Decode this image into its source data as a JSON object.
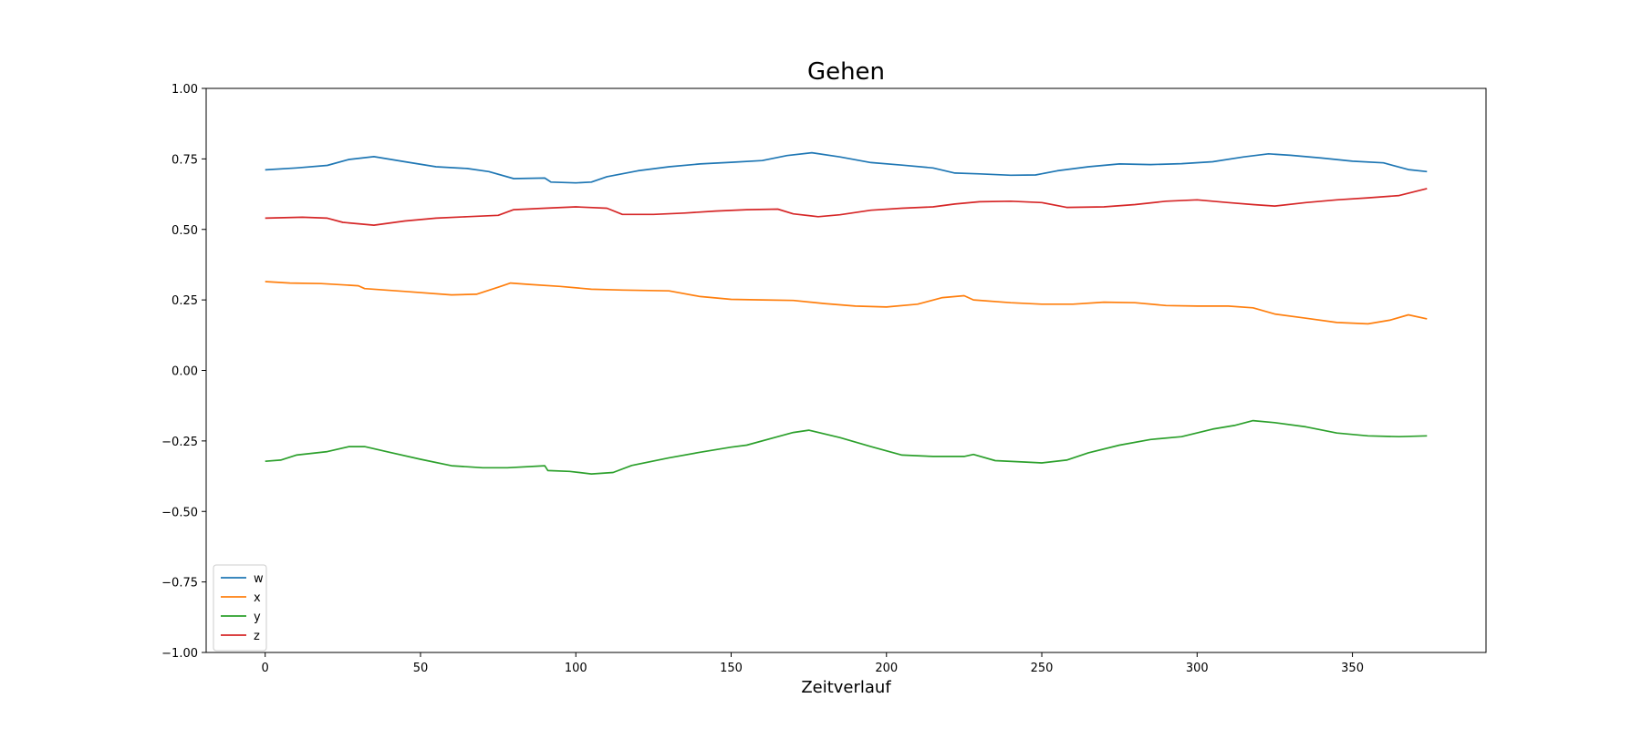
{
  "chart_data": {
    "type": "line",
    "title": "Gehen",
    "xlabel": "Zeitverlauf",
    "ylabel": "",
    "xlim": [
      -19,
      393
    ],
    "ylim": [
      -1.0,
      1.0
    ],
    "x_ticks": [
      0,
      50,
      100,
      150,
      200,
      250,
      300,
      350
    ],
    "y_ticks": [
      -1.0,
      -0.75,
      -0.5,
      -0.25,
      0.0,
      0.25,
      0.5,
      0.75,
      1.0
    ],
    "y_tick_labels": [
      "−1.00",
      "−0.75",
      "−0.50",
      "−0.25",
      "0.00",
      "0.25",
      "0.50",
      "0.75",
      "1.00"
    ],
    "grid": false,
    "legend_position": "lower-left",
    "series": [
      {
        "name": "w",
        "color": "#1f77b4",
        "points": [
          [
            0,
            0.711
          ],
          [
            10,
            0.718
          ],
          [
            20,
            0.727
          ],
          [
            27,
            0.748
          ],
          [
            35,
            0.758
          ],
          [
            45,
            0.74
          ],
          [
            55,
            0.722
          ],
          [
            65,
            0.716
          ],
          [
            72,
            0.705
          ],
          [
            80,
            0.68
          ],
          [
            90,
            0.682
          ],
          [
            92,
            0.668
          ],
          [
            100,
            0.665
          ],
          [
            105,
            0.668
          ],
          [
            110,
            0.687
          ],
          [
            120,
            0.708
          ],
          [
            130,
            0.722
          ],
          [
            140,
            0.732
          ],
          [
            150,
            0.738
          ],
          [
            160,
            0.744
          ],
          [
            168,
            0.762
          ],
          [
            176,
            0.772
          ],
          [
            185,
            0.757
          ],
          [
            195,
            0.737
          ],
          [
            205,
            0.728
          ],
          [
            215,
            0.718
          ],
          [
            222,
            0.7
          ],
          [
            230,
            0.697
          ],
          [
            240,
            0.692
          ],
          [
            248,
            0.693
          ],
          [
            255,
            0.708
          ],
          [
            265,
            0.722
          ],
          [
            275,
            0.732
          ],
          [
            285,
            0.73
          ],
          [
            295,
            0.733
          ],
          [
            305,
            0.74
          ],
          [
            315,
            0.757
          ],
          [
            323,
            0.768
          ],
          [
            330,
            0.763
          ],
          [
            340,
            0.753
          ],
          [
            350,
            0.742
          ],
          [
            360,
            0.736
          ],
          [
            368,
            0.712
          ],
          [
            374,
            0.705
          ]
        ]
      },
      {
        "name": "x",
        "color": "#ff7f0e",
        "points": [
          [
            0,
            0.315
          ],
          [
            8,
            0.31
          ],
          [
            18,
            0.308
          ],
          [
            30,
            0.3
          ],
          [
            32,
            0.29
          ],
          [
            45,
            0.28
          ],
          [
            60,
            0.268
          ],
          [
            68,
            0.27
          ],
          [
            75,
            0.295
          ],
          [
            79,
            0.31
          ],
          [
            85,
            0.305
          ],
          [
            95,
            0.298
          ],
          [
            105,
            0.288
          ],
          [
            115,
            0.285
          ],
          [
            130,
            0.282
          ],
          [
            140,
            0.262
          ],
          [
            150,
            0.252
          ],
          [
            160,
            0.25
          ],
          [
            170,
            0.248
          ],
          [
            180,
            0.237
          ],
          [
            190,
            0.228
          ],
          [
            200,
            0.225
          ],
          [
            210,
            0.235
          ],
          [
            218,
            0.258
          ],
          [
            225,
            0.265
          ],
          [
            228,
            0.25
          ],
          [
            240,
            0.24
          ],
          [
            250,
            0.235
          ],
          [
            260,
            0.235
          ],
          [
            270,
            0.242
          ],
          [
            280,
            0.24
          ],
          [
            290,
            0.23
          ],
          [
            300,
            0.228
          ],
          [
            310,
            0.228
          ],
          [
            318,
            0.222
          ],
          [
            325,
            0.2
          ],
          [
            335,
            0.185
          ],
          [
            345,
            0.17
          ],
          [
            355,
            0.165
          ],
          [
            362,
            0.178
          ],
          [
            368,
            0.197
          ],
          [
            374,
            0.183
          ]
        ]
      },
      {
        "name": "y",
        "color": "#2ca02c",
        "points": [
          [
            0,
            -0.322
          ],
          [
            5,
            -0.318
          ],
          [
            10,
            -0.3
          ],
          [
            20,
            -0.288
          ],
          [
            27,
            -0.27
          ],
          [
            32,
            -0.27
          ],
          [
            40,
            -0.29
          ],
          [
            50,
            -0.315
          ],
          [
            60,
            -0.338
          ],
          [
            70,
            -0.345
          ],
          [
            78,
            -0.345
          ],
          [
            90,
            -0.338
          ],
          [
            91,
            -0.355
          ],
          [
            98,
            -0.358
          ],
          [
            105,
            -0.367
          ],
          [
            112,
            -0.362
          ],
          [
            118,
            -0.337
          ],
          [
            130,
            -0.31
          ],
          [
            140,
            -0.29
          ],
          [
            150,
            -0.272
          ],
          [
            155,
            -0.265
          ],
          [
            165,
            -0.235
          ],
          [
            170,
            -0.22
          ],
          [
            175,
            -0.212
          ],
          [
            185,
            -0.238
          ],
          [
            195,
            -0.27
          ],
          [
            205,
            -0.3
          ],
          [
            215,
            -0.305
          ],
          [
            225,
            -0.305
          ],
          [
            228,
            -0.298
          ],
          [
            235,
            -0.32
          ],
          [
            245,
            -0.325
          ],
          [
            250,
            -0.328
          ],
          [
            258,
            -0.318
          ],
          [
            265,
            -0.292
          ],
          [
            275,
            -0.265
          ],
          [
            285,
            -0.245
          ],
          [
            295,
            -0.235
          ],
          [
            305,
            -0.208
          ],
          [
            312,
            -0.195
          ],
          [
            318,
            -0.178
          ],
          [
            325,
            -0.185
          ],
          [
            335,
            -0.2
          ],
          [
            345,
            -0.222
          ],
          [
            355,
            -0.232
          ],
          [
            365,
            -0.235
          ],
          [
            374,
            -0.232
          ]
        ]
      },
      {
        "name": "z",
        "color": "#d62728",
        "points": [
          [
            0,
            0.54
          ],
          [
            12,
            0.543
          ],
          [
            20,
            0.54
          ],
          [
            25,
            0.525
          ],
          [
            35,
            0.515
          ],
          [
            45,
            0.53
          ],
          [
            55,
            0.54
          ],
          [
            65,
            0.545
          ],
          [
            75,
            0.55
          ],
          [
            80,
            0.57
          ],
          [
            90,
            0.575
          ],
          [
            100,
            0.58
          ],
          [
            110,
            0.575
          ],
          [
            115,
            0.553
          ],
          [
            125,
            0.553
          ],
          [
            135,
            0.558
          ],
          [
            145,
            0.565
          ],
          [
            155,
            0.57
          ],
          [
            165,
            0.572
          ],
          [
            170,
            0.555
          ],
          [
            178,
            0.545
          ],
          [
            185,
            0.552
          ],
          [
            195,
            0.568
          ],
          [
            205,
            0.575
          ],
          [
            215,
            0.58
          ],
          [
            222,
            0.59
          ],
          [
            230,
            0.598
          ],
          [
            240,
            0.6
          ],
          [
            250,
            0.595
          ],
          [
            258,
            0.578
          ],
          [
            270,
            0.58
          ],
          [
            280,
            0.588
          ],
          [
            290,
            0.6
          ],
          [
            300,
            0.605
          ],
          [
            310,
            0.595
          ],
          [
            318,
            0.588
          ],
          [
            325,
            0.583
          ],
          [
            335,
            0.595
          ],
          [
            345,
            0.605
          ],
          [
            355,
            0.612
          ],
          [
            365,
            0.62
          ],
          [
            374,
            0.645
          ]
        ]
      }
    ]
  }
}
